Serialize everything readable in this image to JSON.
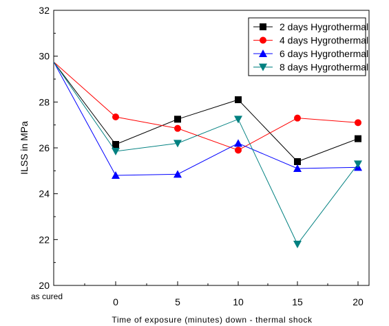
{
  "chart_data": {
    "type": "line",
    "xlabel": "Time of exposure (minutes) down - thermal shock",
    "ylabel": "ILSS in MPa",
    "ylim": [
      20,
      32
    ],
    "yticks": [
      "20",
      "22",
      "24",
      "26",
      "28",
      "30",
      "32"
    ],
    "categories": [
      "as cured",
      "0",
      "5",
      "10",
      "15",
      "20"
    ],
    "grid": false,
    "legend_position": "top-right",
    "series": [
      {
        "name": "2 days Hygrothermal",
        "color": "#000000",
        "marker": "square",
        "values": [
          29.75,
          26.15,
          27.25,
          28.1,
          25.4,
          26.4
        ]
      },
      {
        "name": "4 days Hygrothermal",
        "color": "#ff0000",
        "marker": "circle",
        "values": [
          29.75,
          27.35,
          26.85,
          25.9,
          27.3,
          27.1
        ]
      },
      {
        "name": "6 days Hygrothermal",
        "color": "#0000ff",
        "marker": "triangle-up",
        "values": [
          29.75,
          24.8,
          24.85,
          26.2,
          25.1,
          25.15
        ]
      },
      {
        "name": "8 days Hygrothermal",
        "color": "#008080",
        "marker": "triangle-down",
        "values": [
          29.75,
          25.85,
          26.2,
          27.25,
          21.8,
          25.3
        ]
      }
    ]
  }
}
